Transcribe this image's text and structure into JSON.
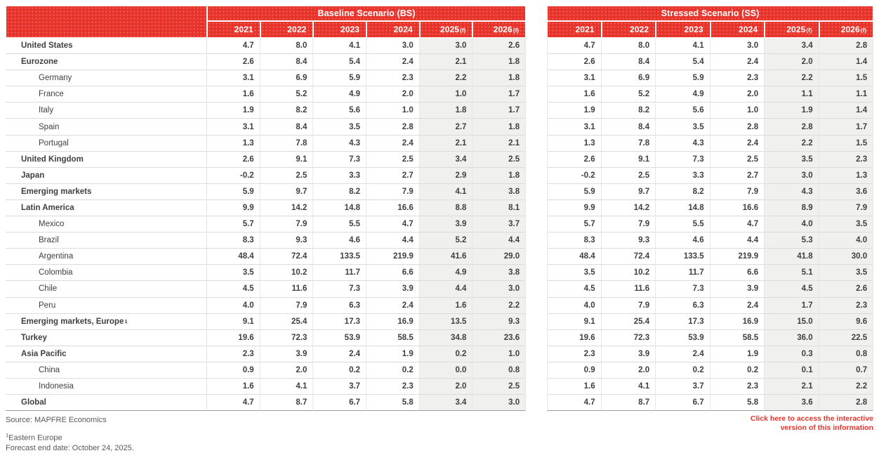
{
  "chart_data": {
    "type": "table",
    "title_left": "Baseline Scenario (BS)",
    "title_right": "Stressed Scenario (SS)",
    "columns": [
      "2021",
      "2022",
      "2023",
      "2024",
      "2025(f)",
      "2026(f)"
    ],
    "rows": [
      {
        "label": "United States",
        "level": 0,
        "bs": [
          "4.7",
          "8.0",
          "4.1",
          "3.0",
          "3.0",
          "2.6"
        ],
        "ss": [
          "4.7",
          "8.0",
          "4.1",
          "3.0",
          "3.4",
          "2.8"
        ]
      },
      {
        "label": "Eurozone",
        "level": 0,
        "bs": [
          "2.6",
          "8.4",
          "5.4",
          "2.4",
          "2.1",
          "1.8"
        ],
        "ss": [
          "2.6",
          "8.4",
          "5.4",
          "2.4",
          "2.0",
          "1.4"
        ]
      },
      {
        "label": "Germany",
        "level": 1,
        "bs": [
          "3.1",
          "6.9",
          "5.9",
          "2.3",
          "2.2",
          "1.8"
        ],
        "ss": [
          "3.1",
          "6.9",
          "5.9",
          "2.3",
          "2.2",
          "1.5"
        ]
      },
      {
        "label": "France",
        "level": 1,
        "bs": [
          "1.6",
          "5.2",
          "4.9",
          "2.0",
          "1.0",
          "1.7"
        ],
        "ss": [
          "1.6",
          "5.2",
          "4.9",
          "2.0",
          "1.1",
          "1.1"
        ]
      },
      {
        "label": "Italy",
        "level": 1,
        "bs": [
          "1.9",
          "8.2",
          "5.6",
          "1.0",
          "1.8",
          "1.7"
        ],
        "ss": [
          "1.9",
          "8.2",
          "5.6",
          "1.0",
          "1.9",
          "1.4"
        ]
      },
      {
        "label": "Spain",
        "level": 1,
        "bs": [
          "3.1",
          "8.4",
          "3.5",
          "2.8",
          "2.7",
          "1.8"
        ],
        "ss": [
          "3.1",
          "8.4",
          "3.5",
          "2.8",
          "2.8",
          "1.7"
        ]
      },
      {
        "label": "Portugal",
        "level": 1,
        "bs": [
          "1.3",
          "7.8",
          "4.3",
          "2.4",
          "2.1",
          "2.1"
        ],
        "ss": [
          "1.3",
          "7.8",
          "4.3",
          "2.4",
          "2.2",
          "1.5"
        ]
      },
      {
        "label": "United Kingdom",
        "level": 0,
        "bs": [
          "2.6",
          "9.1",
          "7.3",
          "2.5",
          "3.4",
          "2.5"
        ],
        "ss": [
          "2.6",
          "9.1",
          "7.3",
          "2.5",
          "3.5",
          "2.3"
        ]
      },
      {
        "label": "Japan",
        "level": 0,
        "bs": [
          "-0.2",
          "2.5",
          "3.3",
          "2.7",
          "2.9",
          "1.8"
        ],
        "ss": [
          "-0.2",
          "2.5",
          "3.3",
          "2.7",
          "3.0",
          "1.3"
        ]
      },
      {
        "label": "Emerging markets",
        "level": 0,
        "bs": [
          "5.9",
          "9.7",
          "8.2",
          "7.9",
          "4.1",
          "3.8"
        ],
        "ss": [
          "5.9",
          "9.7",
          "8.2",
          "7.9",
          "4.3",
          "3.6"
        ]
      },
      {
        "label": "Latin America",
        "level": 0,
        "bs": [
          "9.9",
          "14.2",
          "14.8",
          "16.6",
          "8.8",
          "8.1"
        ],
        "ss": [
          "9.9",
          "14.2",
          "14.8",
          "16.6",
          "8.9",
          "7.9"
        ]
      },
      {
        "label": "Mexico",
        "level": 1,
        "bs": [
          "5.7",
          "7.9",
          "5.5",
          "4.7",
          "3.9",
          "3.7"
        ],
        "ss": [
          "5.7",
          "7.9",
          "5.5",
          "4.7",
          "4.0",
          "3.5"
        ]
      },
      {
        "label": "Brazil",
        "level": 1,
        "bs": [
          "8.3",
          "9.3",
          "4.6",
          "4.4",
          "5.2",
          "4.4"
        ],
        "ss": [
          "8.3",
          "9.3",
          "4.6",
          "4.4",
          "5.3",
          "4.0"
        ]
      },
      {
        "label": "Argentina",
        "level": 1,
        "bs": [
          "48.4",
          "72.4",
          "133.5",
          "219.9",
          "41.6",
          "29.0"
        ],
        "ss": [
          "48.4",
          "72.4",
          "133.5",
          "219.9",
          "41.8",
          "30.0"
        ]
      },
      {
        "label": "Colombia",
        "level": 1,
        "bs": [
          "3.5",
          "10.2",
          "11.7",
          "6.6",
          "4.9",
          "3.8"
        ],
        "ss": [
          "3.5",
          "10.2",
          "11.7",
          "6.6",
          "5.1",
          "3.5"
        ]
      },
      {
        "label": "Chile",
        "level": 1,
        "bs": [
          "4.5",
          "11.6",
          "7.3",
          "3.9",
          "4.4",
          "3.0"
        ],
        "ss": [
          "4.5",
          "11.6",
          "7.3",
          "3.9",
          "4.5",
          "2.6"
        ]
      },
      {
        "label": "Peru",
        "level": 1,
        "bs": [
          "4.0",
          "7.9",
          "6.3",
          "2.4",
          "1.6",
          "2.2"
        ],
        "ss": [
          "4.0",
          "7.9",
          "6.3",
          "2.4",
          "1.7",
          "2.3"
        ]
      },
      {
        "label": "Emerging markets, Europe",
        "sup": "1",
        "level": 0,
        "bs": [
          "9.1",
          "25.4",
          "17.3",
          "16.9",
          "13.5",
          "9.3"
        ],
        "ss": [
          "9.1",
          "25.4",
          "17.3",
          "16.9",
          "15.0",
          "9.6"
        ]
      },
      {
        "label": "Turkey",
        "level": 0,
        "bs": [
          "19.6",
          "72.3",
          "53.9",
          "58.5",
          "34.8",
          "23.6"
        ],
        "ss": [
          "19.6",
          "72.3",
          "53.9",
          "58.5",
          "36.0",
          "22.5"
        ]
      },
      {
        "label": "Asia Pacific",
        "level": 0,
        "bs": [
          "2.3",
          "3.9",
          "2.4",
          "1.9",
          "0.2",
          "1.0"
        ],
        "ss": [
          "2.3",
          "3.9",
          "2.4",
          "1.9",
          "0.3",
          "0.8"
        ]
      },
      {
        "label": "China",
        "level": 1,
        "bs": [
          "0.9",
          "2.0",
          "0.2",
          "0.2",
          "0.0",
          "0.8"
        ],
        "ss": [
          "0.9",
          "2.0",
          "0.2",
          "0.2",
          "0.1",
          "0.7"
        ]
      },
      {
        "label": "Indonesia",
        "level": 1,
        "bs": [
          "1.6",
          "4.1",
          "3.7",
          "2.3",
          "2.0",
          "2.5"
        ],
        "ss": [
          "1.6",
          "4.1",
          "3.7",
          "2.3",
          "2.1",
          "2.2"
        ]
      },
      {
        "label": "Global",
        "level": 0,
        "bs": [
          "4.7",
          "8.7",
          "6.7",
          "5.8",
          "3.4",
          "3.0"
        ],
        "ss": [
          "4.7",
          "8.7",
          "6.7",
          "5.8",
          "3.6",
          "2.8"
        ]
      }
    ]
  },
  "footer": {
    "source": "Source: MAPFRE Economics",
    "footnote1_sup": "1",
    "footnote1_text": "Eastern Europe",
    "footnote2": "Forecast end date: October 24, 2025.",
    "link_line1": "Click here to access the interactive",
    "link_line2": "version of this information"
  },
  "colors": {
    "accent_red": "#E7332A",
    "forecast_column_bg": "#F0F0EE",
    "text": "#404042"
  }
}
